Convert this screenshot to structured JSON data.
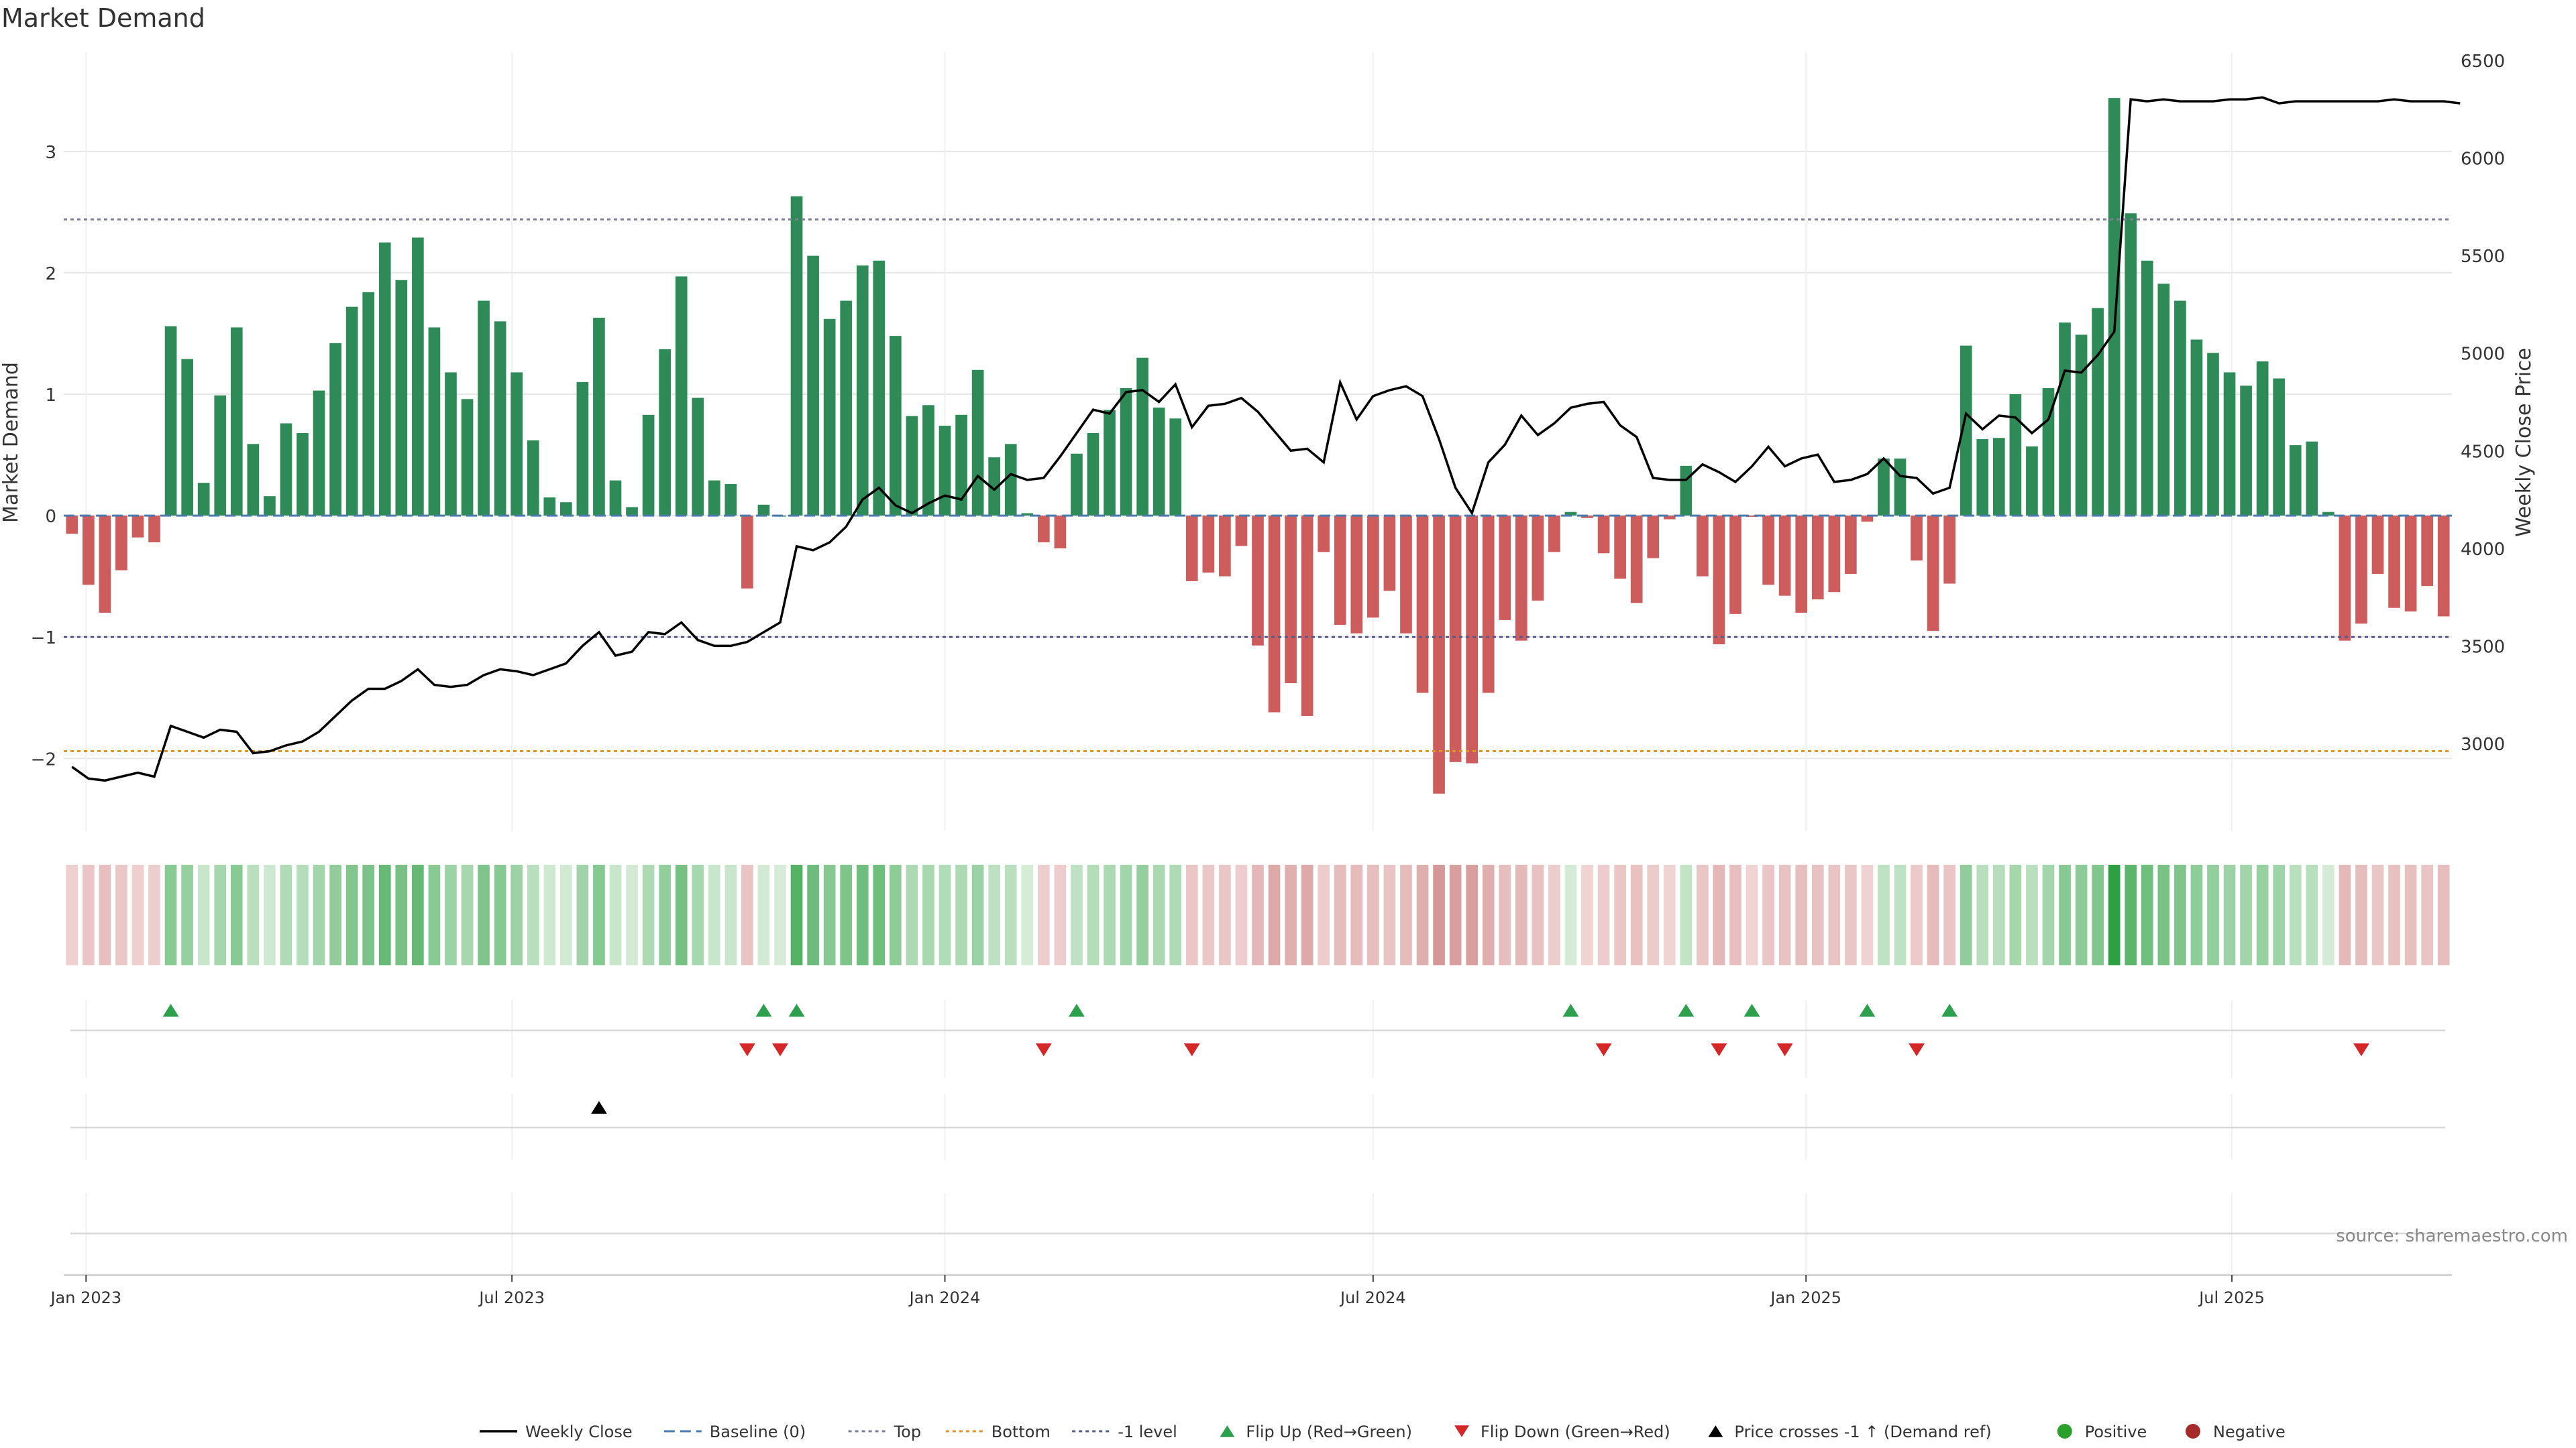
{
  "chart_data": {
    "type": "bar",
    "title": "Market Demand",
    "ylabel": "Market Demand",
    "y2label": "Weekly Close Price",
    "ylim": [
      -2.6,
      3.75
    ],
    "y2lim": [
      2550,
      6500
    ],
    "yticks": [
      -2,
      -1,
      0,
      1,
      2,
      3
    ],
    "y2ticks": [
      3000,
      3500,
      4000,
      4500,
      5000,
      5500,
      6000,
      6500
    ],
    "x_start": "2022-12-26",
    "x_step_days": 7,
    "xticks": [
      {
        "date": "2023-01-01",
        "label": "Jan 2023"
      },
      {
        "date": "2023-07-01",
        "label": "Jul 2023"
      },
      {
        "date": "2024-01-01",
        "label": "Jan 2024"
      },
      {
        "date": "2024-07-01",
        "label": "Jul 2024"
      },
      {
        "date": "2025-01-01",
        "label": "Jan 2025"
      },
      {
        "date": "2025-07-01",
        "label": "Jul 2025"
      }
    ],
    "levels": {
      "top": 2.44,
      "bottom": -1.94,
      "minus_one": -1.0
    },
    "demand": [
      -0.15,
      -0.57,
      -0.8,
      -0.45,
      -0.18,
      -0.22,
      1.56,
      1.29,
      0.27,
      0.99,
      1.55,
      0.59,
      0.16,
      0.76,
      0.68,
      1.03,
      1.42,
      1.72,
      1.84,
      2.25,
      1.94,
      2.29,
      1.55,
      1.18,
      0.96,
      1.77,
      1.6,
      1.18,
      0.62,
      0.15,
      0.11,
      1.1,
      1.63,
      0.29,
      0.07,
      0.83,
      1.37,
      1.97,
      0.97,
      0.29,
      0.26,
      -0.6,
      0.09,
      0.0,
      2.63,
      2.14,
      1.62,
      1.77,
      2.06,
      2.1,
      1.48,
      0.82,
      0.91,
      0.74,
      0.83,
      1.2,
      0.48,
      0.59,
      0.02,
      -0.22,
      -0.27,
      0.51,
      0.68,
      0.87,
      1.05,
      1.3,
      0.89,
      0.8,
      -0.54,
      -0.47,
      -0.5,
      -0.25,
      -1.07,
      -1.62,
      -1.38,
      -1.65,
      -0.3,
      -0.9,
      -0.97,
      -0.84,
      -0.62,
      -0.97,
      -1.46,
      -2.29,
      -2.03,
      -2.04,
      -1.46,
      -0.86,
      -1.03,
      -0.7,
      -0.3,
      0.03,
      -0.02,
      -0.31,
      -0.52,
      -0.72,
      -0.35,
      -0.03,
      0.41,
      -0.5,
      -1.06,
      -0.81,
      -0.01,
      -0.57,
      -0.66,
      -0.8,
      -0.69,
      -0.63,
      -0.48,
      -0.05,
      0.47,
      0.47,
      -0.37,
      -0.95,
      -0.56,
      1.4,
      0.63,
      0.64,
      1.0,
      0.57,
      1.05,
      1.59,
      1.49,
      1.71,
      3.44,
      2.49,
      2.1,
      1.91,
      1.77,
      1.45,
      1.34,
      1.18,
      1.07,
      1.27,
      1.13,
      0.58,
      0.61,
      0.03,
      -1.03,
      -0.89,
      -0.48,
      -0.76,
      -0.79,
      -0.58,
      -0.83
    ],
    "price": [
      2880,
      2820,
      2810,
      2830,
      2850,
      2830,
      3090,
      3060,
      3030,
      3070,
      3060,
      2950,
      2960,
      2990,
      3010,
      3060,
      3140,
      3220,
      3280,
      3280,
      3320,
      3380,
      3300,
      3290,
      3300,
      3350,
      3380,
      3370,
      3350,
      3380,
      3410,
      3500,
      3570,
      3450,
      3470,
      3570,
      3560,
      3620,
      3530,
      3500,
      3500,
      3520,
      3570,
      3620,
      4010,
      3990,
      4030,
      4110,
      4250,
      4310,
      4220,
      4180,
      4230,
      4270,
      4250,
      4370,
      4300,
      4380,
      4350,
      4360,
      4470,
      4590,
      4710,
      4690,
      4800,
      4810,
      4750,
      4840,
      4620,
      4730,
      4740,
      4770,
      4700,
      4600,
      4500,
      4510,
      4440,
      4850,
      4660,
      4780,
      4810,
      4830,
      4780,
      4560,
      4310,
      4180,
      4440,
      4530,
      4680,
      4580,
      4640,
      4720,
      4740,
      4750,
      4630,
      4570,
      4360,
      4350,
      4350,
      4430,
      4390,
      4340,
      4420,
      4520,
      4420,
      4460,
      4480,
      4340,
      4350,
      4380,
      4460,
      4370,
      4360,
      4280,
      4310,
      4690,
      4610,
      4680,
      4670,
      4590,
      4660,
      4910,
      4900,
      4990,
      5110,
      6300,
      6290,
      6300,
      6290,
      6290,
      6290,
      6300,
      6300,
      6310,
      6280,
      6290,
      6290,
      6290,
      6290,
      6290,
      6290,
      6300,
      6290,
      6290,
      6290,
      6280
    ],
    "flip_up": [
      "2023-02-06",
      "2023-10-16",
      "2023-10-30",
      "2024-02-26",
      "2024-09-23",
      "2024-11-11",
      "2024-12-09",
      "2025-01-27",
      "2025-03-03"
    ],
    "flip_down": [
      "2023-10-09",
      "2023-10-23",
      "2024-02-12",
      "2024-04-15",
      "2024-10-07",
      "2024-11-25",
      "2024-12-23",
      "2025-02-17",
      "2025-08-25"
    ],
    "price_cross": [
      "2023-08-07"
    ],
    "legend_placement": "bottom-center"
  },
  "legend": [
    {
      "label": "Weekly Close",
      "kind": "line",
      "color": "#000000"
    },
    {
      "label": "Baseline (0)",
      "kind": "dash",
      "color": "#4a7ab0"
    },
    {
      "label": "Top",
      "kind": "dot",
      "color": "#7d7d9a"
    },
    {
      "label": "Bottom",
      "kind": "dot",
      "color": "#e0932a"
    },
    {
      "label": "-1 level",
      "kind": "dot",
      "color": "#5a5a8a"
    },
    {
      "label": "Flip Up (Red→Green)",
      "kind": "tri-up",
      "color": "#2ca04c"
    },
    {
      "label": "Flip Down (Green→Red)",
      "kind": "tri-down",
      "color": "#d62728"
    },
    {
      "label": "Price crosses -1 ↑ (Demand ref)",
      "kind": "tri-up",
      "color": "#000000"
    },
    {
      "label": "Positive",
      "kind": "dot-marker",
      "color": "#2ca02c"
    },
    {
      "label": "Negative",
      "kind": "dot-marker",
      "color": "#a52a2a"
    }
  ],
  "colors": {
    "positive_bar": "#2e8b57",
    "negative_bar": "#cd5c5c",
    "price_line": "#000000",
    "grid": "#e6e6e6"
  },
  "source": "source: sharemaestro.com"
}
